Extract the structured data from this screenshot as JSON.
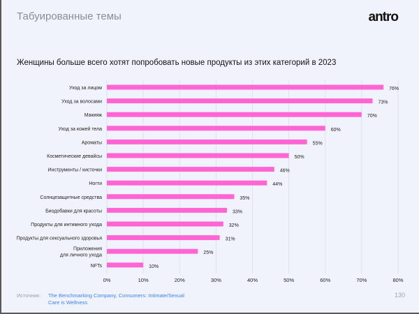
{
  "header": {
    "section": "Табуированные темы",
    "logo": "antro"
  },
  "chart_data": {
    "type": "bar",
    "orientation": "horizontal",
    "title": "Женщины больше всего хотят попробовать новые продукты из этих категорий в 2023",
    "categories": [
      "Уход за лицом",
      "Уход за волосами",
      "Макияж",
      "Уход за кожей тела",
      "Ароматы",
      "Косметические девайсы",
      "Инструменты / кисточки",
      "Ногти",
      "Солнцезащитные средства",
      "Биодобавки для красоты",
      "Продукты для интимного ухода",
      "Продукты для сексуального здоровья",
      "Приложения\nдля личного ухода",
      "NFTs"
    ],
    "values": [
      76,
      73,
      70,
      60,
      55,
      50,
      46,
      44,
      35,
      33,
      32,
      31,
      25,
      10
    ],
    "value_labels": [
      "76%",
      "73%",
      "70%",
      "60%",
      "55%",
      "50%",
      "46%",
      "44%",
      "35%",
      "33%",
      "32%",
      "31%",
      "25%",
      "10%"
    ],
    "xlim": [
      0,
      80
    ],
    "xticks": [
      "0%",
      "10%",
      "20%",
      "30%",
      "40%",
      "50%",
      "60%",
      "70%",
      "80%"
    ],
    "grid": true,
    "bar_color": "#ff66d4"
  },
  "footer": {
    "source_label": "Источник:",
    "source_text": "The Benchmarking Company, Consumers: Intimate/Sexual Care is Wellness",
    "page": "130"
  }
}
